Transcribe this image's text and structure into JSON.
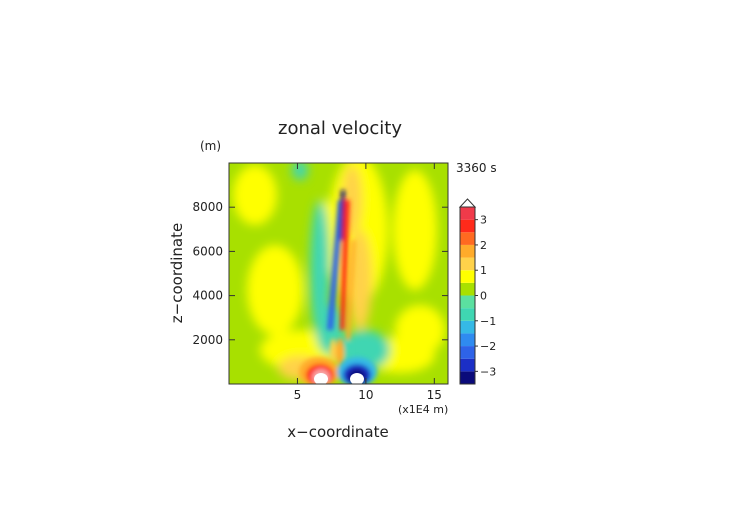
{
  "chart_data": {
    "type": "heatmap",
    "title": "zonal velocity",
    "time_label": "3360 s",
    "xlabel": "x−coordinate",
    "ylabel": "z−coordinate",
    "x_unit": "(x1E4 m)",
    "y_unit": "(m)",
    "xlim": [
      0,
      16
    ],
    "ylim": [
      0,
      10000
    ],
    "x_ticks": [
      5,
      10,
      15
    ],
    "y_ticks": [
      2000,
      4000,
      6000,
      8000
    ],
    "y_tick_labels": [
      "2000",
      "4000",
      "6000",
      "8000"
    ],
    "x_tick_labels": [
      "5",
      "10",
      "15"
    ],
    "colorbar": {
      "levels": [
        -3.5,
        -3,
        -2.5,
        -2,
        -1.5,
        -1,
        -0.5,
        0,
        0.5,
        1,
        1.5,
        2,
        2.5,
        3,
        3.5
      ],
      "colors": [
        "#0a0a7a",
        "#1b2fc6",
        "#2e63e8",
        "#2f8bf0",
        "#35b9e6",
        "#3fd6b2",
        "#5be0a0",
        "#a8e000",
        "#ffff00",
        "#ffd24a",
        "#ffab2a",
        "#ff6a20",
        "#ff2a1a",
        "#f03a4a",
        "#f7a7a7"
      ],
      "tick_values": [
        3,
        2,
        1,
        0,
        -1,
        -2,
        -3
      ],
      "tick_labels": [
        "3",
        "2",
        "1",
        "0",
        "−1",
        "−2",
        "−3"
      ],
      "overflow_top_color": "#ffffff"
    }
  }
}
